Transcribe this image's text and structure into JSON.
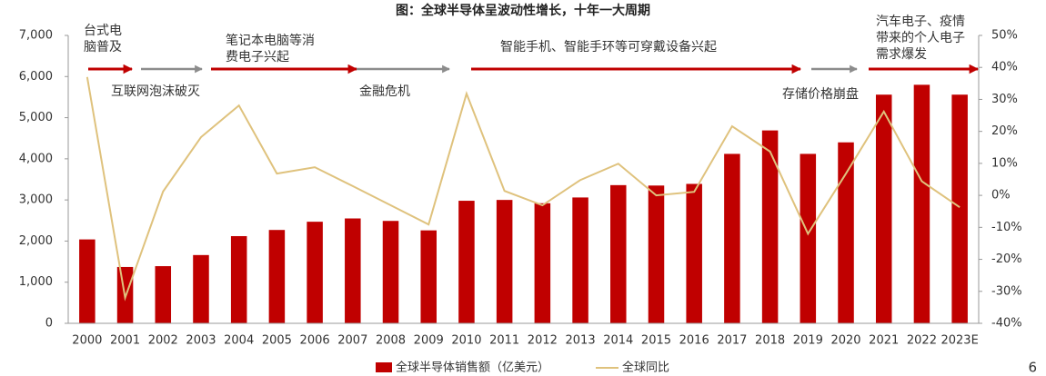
{
  "chart_data": {
    "type": "bar-line",
    "title": "图：全球半导体呈波动性增长，十年一大周期",
    "categories": [
      "2000",
      "2001",
      "2002",
      "2003",
      "2004",
      "2005",
      "2006",
      "2007",
      "2008",
      "2009",
      "2010",
      "2011",
      "2012",
      "2013",
      "2014",
      "2015",
      "2016",
      "2017",
      "2018",
      "2019",
      "2020",
      "2021",
      "2022",
      "2023E"
    ],
    "series": [
      {
        "name": "全球半导体销售额（亿美元）",
        "type": "bar",
        "color": "#c00000",
        "values": [
          2040,
          1370,
          1390,
          1660,
          2120,
          2270,
          2470,
          2550,
          2490,
          2260,
          2980,
          3000,
          2920,
          3060,
          3360,
          3350,
          3390,
          4120,
          4690,
          4120,
          4400,
          5560,
          5800,
          5560
        ]
      },
      {
        "name": "全球同比",
        "type": "line",
        "axis": "y2",
        "color": "#dfc27d",
        "values": [
          37,
          -32,
          1.2,
          18.2,
          28.1,
          6.8,
          8.8,
          2.9,
          -3.1,
          -9.1,
          31.8,
          1.4,
          -3.1,
          4.8,
          9.9,
          0,
          1.1,
          21.6,
          13.7,
          -12,
          6.8,
          26.2,
          4.4,
          -3.7
        ]
      }
    ],
    "ylim": [
      0,
      7000
    ],
    "yticks": [
      0,
      {
        "value": 1000,
        "label": "1,000"
      },
      {
        "value": 2000,
        "label": "2,000"
      },
      {
        "value": 3000,
        "label": "3,000"
      },
      {
        "value": 4000,
        "label": "4,000"
      },
      {
        "value": 5000,
        "label": "5,000"
      },
      {
        "value": 6000,
        "label": "6,000"
      },
      {
        "value": 7000,
        "label": "7,000"
      }
    ],
    "y2lim": [
      -40,
      50
    ],
    "y2ticks": [
      {
        "value": -40,
        "label": "-40%"
      },
      {
        "value": -30,
        "label": "-30%"
      },
      {
        "value": -20,
        "label": "-20%"
      },
      {
        "value": -10,
        "label": "-10%"
      },
      {
        "value": 0,
        "label": "0%"
      },
      {
        "value": 10,
        "label": "10%"
      },
      {
        "value": 20,
        "label": "20%"
      },
      {
        "value": 30,
        "label": "30%"
      },
      {
        "value": 40,
        "label": "40%"
      },
      {
        "value": 50,
        "label": "50%"
      }
    ],
    "annotations": [
      {
        "lines": [
          "台式电",
          "脑普及"
        ],
        "color": "#c00000"
      },
      {
        "lines": [
          "互联网泡沫破灭"
        ],
        "color": "#595959"
      },
      {
        "lines": [
          "笔记本电脑等消",
          "费电子兴起"
        ],
        "color": "#c00000"
      },
      {
        "lines": [
          "金融危机"
        ],
        "color": "#595959"
      },
      {
        "lines": [
          "智能手机、智能手环等可穿戴设备兴起"
        ],
        "color": "#c00000"
      },
      {
        "lines": [
          "存储价格崩盘"
        ],
        "color": "#595959"
      },
      {
        "lines": [
          "汽车电子、疫情",
          "带来的个人电子",
          "需求爆发"
        ],
        "color": "#c00000"
      }
    ],
    "page_number": "6"
  }
}
